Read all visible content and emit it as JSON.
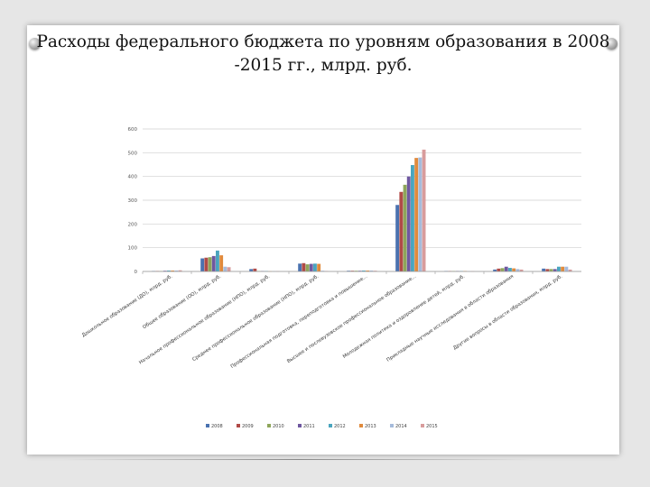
{
  "slide": {
    "title_line1": "Расходы федерального бюджета по уровням образования в 2008",
    "title_line2": "-2015 гг., млрд. руб."
  },
  "colors": {
    "series": [
      "#4a72b0",
      "#b04a47",
      "#8ea65a",
      "#6e58a0",
      "#4aa5be",
      "#e08a3c",
      "#a6bbdb",
      "#d89c9c"
    ]
  },
  "chart_data": {
    "type": "bar",
    "title": "",
    "xlabel": "",
    "ylabel": "",
    "ylim": [
      0,
      600
    ],
    "yticks": [
      0,
      100,
      200,
      300,
      400,
      500,
      600
    ],
    "grid": true,
    "legend_position": "bottom",
    "categories": [
      "Дошкольное образование (ДО), млрд. руб.",
      "Общее образование (ОО), млрд. руб.",
      "Начальное профессиональное образование (НПО), млрд. руб.",
      "Среднее профессиональное образование (НПО), млрд. руб.",
      "Профессиональная подготовка, переподготовка и повышение...",
      "Высшее и послевузовское профессиональное образование...",
      "Молодежная политика и оздоровление детей, млрд. руб.",
      "Прикладные научные исследования в области образования",
      "Другие вопросы в области образования, млрд. руб."
    ],
    "series": [
      {
        "name": "2008",
        "values": [
          2,
          55,
          10,
          33,
          3,
          280,
          2,
          8,
          12
        ]
      },
      {
        "name": "2009",
        "values": [
          2,
          58,
          12,
          35,
          3,
          335,
          2,
          12,
          10
        ]
      },
      {
        "name": "2010",
        "values": [
          2,
          60,
          2,
          30,
          3,
          365,
          2,
          14,
          10
        ]
      },
      {
        "name": "2011",
        "values": [
          3,
          65,
          2,
          32,
          3,
          400,
          2,
          20,
          10
        ]
      },
      {
        "name": "2012",
        "values": [
          4,
          88,
          2,
          33,
          4,
          448,
          2,
          15,
          20
        ]
      },
      {
        "name": "2013",
        "values": [
          4,
          68,
          1,
          32,
          4,
          478,
          2,
          13,
          20
        ]
      },
      {
        "name": "2014",
        "values": [
          4,
          20,
          1,
          3,
          4,
          480,
          1,
          10,
          20
        ]
      },
      {
        "name": "2015",
        "values": [
          5,
          18,
          1,
          2,
          3,
          513,
          1,
          8,
          8
        ]
      }
    ]
  }
}
